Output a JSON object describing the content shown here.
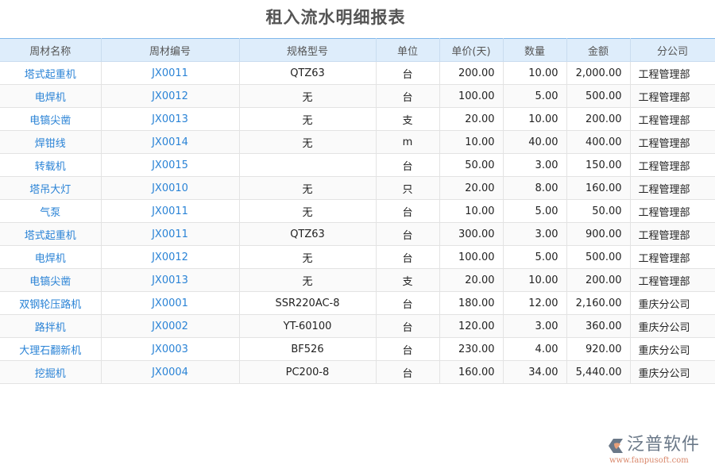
{
  "title": "租入流水明细报表",
  "columns": [
    "周材名称",
    "周材编号",
    "规格型号",
    "单位",
    "单价(天)",
    "数量",
    "金额",
    "分公司"
  ],
  "rows": [
    [
      "塔式起重机",
      "JX0011",
      "QTZ63",
      "台",
      "200.00",
      "10.00",
      "2,000.00",
      "工程管理部"
    ],
    [
      "电焊机",
      "JX0012",
      "无",
      "台",
      "100.00",
      "5.00",
      "500.00",
      "工程管理部"
    ],
    [
      "电镐尖凿",
      "JX0013",
      "无",
      "支",
      "20.00",
      "10.00",
      "200.00",
      "工程管理部"
    ],
    [
      "焊钳线",
      "JX0014",
      "无",
      "m",
      "10.00",
      "40.00",
      "400.00",
      "工程管理部"
    ],
    [
      "转载机",
      "JX0015",
      "",
      "台",
      "50.00",
      "3.00",
      "150.00",
      "工程管理部"
    ],
    [
      "塔吊大灯",
      "JX0010",
      "无",
      "只",
      "20.00",
      "8.00",
      "160.00",
      "工程管理部"
    ],
    [
      "气泵",
      "JX0011",
      "无",
      "台",
      "10.00",
      "5.00",
      "50.00",
      "工程管理部"
    ],
    [
      "塔式起重机",
      "JX0011",
      "QTZ63",
      "台",
      "300.00",
      "3.00",
      "900.00",
      "工程管理部"
    ],
    [
      "电焊机",
      "JX0012",
      "无",
      "台",
      "100.00",
      "5.00",
      "500.00",
      "工程管理部"
    ],
    [
      "电镐尖凿",
      "JX0013",
      "无",
      "支",
      "20.00",
      "10.00",
      "200.00",
      "工程管理部"
    ],
    [
      "双钢轮压路机",
      "JX0001",
      "SSR220AC-8",
      "台",
      "180.00",
      "12.00",
      "2,160.00",
      "重庆分公司"
    ],
    [
      "路拌机",
      "JX0002",
      "YT-60100",
      "台",
      "120.00",
      "3.00",
      "360.00",
      "重庆分公司"
    ],
    [
      "大理石翻新机",
      "JX0003",
      "BF526",
      "台",
      "230.00",
      "4.00",
      "920.00",
      "重庆分公司"
    ],
    [
      "挖掘机",
      "JX0004",
      "PC200-8",
      "台",
      "160.00",
      "34.00",
      "5,440.00",
      "重庆分公司"
    ]
  ],
  "logo": {
    "name": "泛普软件",
    "url": "www.fanpusoft.com"
  },
  "colors": {
    "link": "#2a83d6",
    "header_bg": "#deedfb"
  }
}
